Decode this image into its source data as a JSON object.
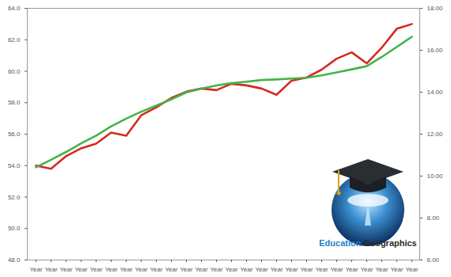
{
  "chart_data": {
    "type": "line",
    "categories": [
      "Year",
      "Year",
      "Year",
      "Year",
      "Year",
      "Year",
      "Year",
      "Year",
      "Year",
      "Year",
      "Year",
      "Year",
      "Year",
      "Year",
      "Year",
      "Year",
      "Year",
      "Year",
      "Year",
      "Year",
      "Year",
      "Year",
      "Year",
      "Year",
      "Year",
      "Year"
    ],
    "series": [
      {
        "color": "#d42a20",
        "values": [
          54.0,
          53.8,
          54.6,
          55.1,
          55.4,
          56.1,
          55.9,
          57.2,
          57.7,
          58.3,
          58.7,
          58.9,
          58.8,
          59.2,
          59.1,
          58.9,
          58.5,
          59.4,
          59.6,
          60.1,
          60.8,
          61.2,
          60.5,
          61.5,
          62.7,
          63.0
        ]
      },
      {
        "color": "#44b34a",
        "axis": "y2",
        "values": [
          10.42,
          10.78,
          11.15,
          11.56,
          11.93,
          12.37,
          12.74,
          13.07,
          13.36,
          13.66,
          13.99,
          14.17,
          14.32,
          14.43,
          14.5,
          14.58,
          14.61,
          14.65,
          14.69,
          14.8,
          14.94,
          15.09,
          15.24,
          15.68,
          16.16,
          16.64
        ]
      }
    ],
    "ylim": [
      48,
      64
    ],
    "yticks": [
      {
        "value": 48,
        "label": "48.0"
      },
      {
        "value": 50,
        "label": "50.0"
      },
      {
        "value": 52,
        "label": "52.0"
      },
      {
        "value": 54,
        "label": "54.0"
      },
      {
        "value": 56,
        "label": "56.0"
      },
      {
        "value": 58,
        "label": "58.0"
      },
      {
        "value": 60,
        "label": "60.0"
      },
      {
        "value": 62,
        "label": "62.0"
      },
      {
        "value": 64,
        "label": "64.0"
      }
    ],
    "y2lim": [
      6,
      18
    ],
    "y2ticks": [
      {
        "value": 6,
        "label": "6.00"
      },
      {
        "value": 8,
        "label": "8.00"
      },
      {
        "value": 10,
        "label": "10.00"
      },
      {
        "value": 12,
        "label": "12.00"
      },
      {
        "value": 14,
        "label": "14.00"
      },
      {
        "value": 16,
        "label": "16.00"
      },
      {
        "value": 18,
        "label": "18.00"
      }
    ],
    "grid": false,
    "annotations": [
      "Education",
      "Geographics"
    ]
  }
}
